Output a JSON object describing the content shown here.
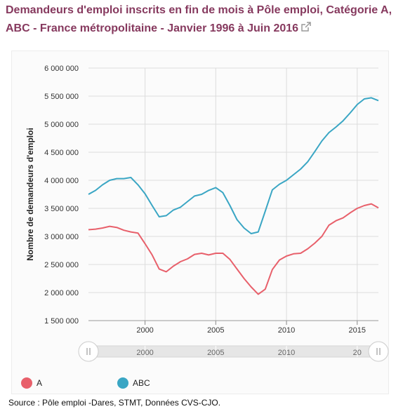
{
  "title": "Demandeurs d'emploi inscrits en fin de mois à Pôle emploi, Catégorie A, ABC - France métropolitaine - Janvier 1996 à Juin 2016",
  "source": "Source : Pôle emploi -Dares, STMT, Données CVS-CJO.",
  "colors": {
    "A": "#e8606b",
    "ABC": "#3aa6c4",
    "title": "#86395e"
  },
  "icons": {
    "title_link": "external-link-icon",
    "navigator_handle": "drag-handle-icon"
  },
  "chart_data": {
    "type": "line",
    "title": "Demandeurs d'emploi inscrits en fin de mois à Pôle emploi, Catégorie A, ABC - France métropolitaine - Janvier 1996 à Juin 2016",
    "xlabel": "",
    "ylabel": "Nombre de demandeurs d'emploi",
    "ylim": [
      1500000,
      6000000
    ],
    "xlim": [
      1996.0,
      2016.5
    ],
    "yticks": [
      1500000,
      2000000,
      2500000,
      3000000,
      3500000,
      4000000,
      4500000,
      5000000,
      5500000,
      6000000
    ],
    "ytick_labels": [
      "1 500 000",
      "2 000 000",
      "2 500 000",
      "3 000 000",
      "3 500 000",
      "4 000 000",
      "4 500 000",
      "5 000 000",
      "5 500 000",
      "6 000 000"
    ],
    "xticks": [
      2000,
      2005,
      2010,
      2015
    ],
    "xtick_labels": [
      "2000",
      "2005",
      "2010",
      "2015"
    ],
    "grid": true,
    "legend": "bottom-left",
    "navigator": {
      "tick_labels": [
        "2000",
        "2005",
        "2010",
        "20"
      ]
    },
    "x": [
      1996.0,
      1996.5,
      1997.0,
      1997.5,
      1998.0,
      1998.5,
      1999.0,
      1999.5,
      2000.0,
      2000.5,
      2001.0,
      2001.5,
      2002.0,
      2002.5,
      2003.0,
      2003.5,
      2004.0,
      2004.5,
      2005.0,
      2005.5,
      2006.0,
      2006.5,
      2007.0,
      2007.5,
      2008.0,
      2008.5,
      2009.0,
      2009.5,
      2010.0,
      2010.5,
      2011.0,
      2011.5,
      2012.0,
      2012.5,
      2013.0,
      2013.5,
      2014.0,
      2014.5,
      2015.0,
      2015.5,
      2016.0,
      2016.5
    ],
    "series": [
      {
        "name": "A",
        "values": [
          3120000,
          3130000,
          3150000,
          3180000,
          3160000,
          3110000,
          3080000,
          3060000,
          2870000,
          2670000,
          2420000,
          2370000,
          2470000,
          2550000,
          2600000,
          2680000,
          2700000,
          2670000,
          2700000,
          2700000,
          2590000,
          2420000,
          2250000,
          2100000,
          1970000,
          2060000,
          2410000,
          2580000,
          2650000,
          2690000,
          2700000,
          2780000,
          2880000,
          3000000,
          3200000,
          3280000,
          3330000,
          3420000,
          3500000,
          3550000,
          3580000,
          3510000
        ]
      },
      {
        "name": "ABC",
        "values": [
          3750000,
          3820000,
          3920000,
          4000000,
          4030000,
          4030000,
          4050000,
          3920000,
          3760000,
          3550000,
          3350000,
          3370000,
          3470000,
          3520000,
          3620000,
          3720000,
          3750000,
          3820000,
          3870000,
          3780000,
          3550000,
          3300000,
          3150000,
          3050000,
          3080000,
          3450000,
          3830000,
          3930000,
          4000000,
          4100000,
          4200000,
          4330000,
          4510000,
          4700000,
          4850000,
          4950000,
          5060000,
          5200000,
          5350000,
          5450000,
          5470000,
          5420000
        ]
      }
    ]
  }
}
